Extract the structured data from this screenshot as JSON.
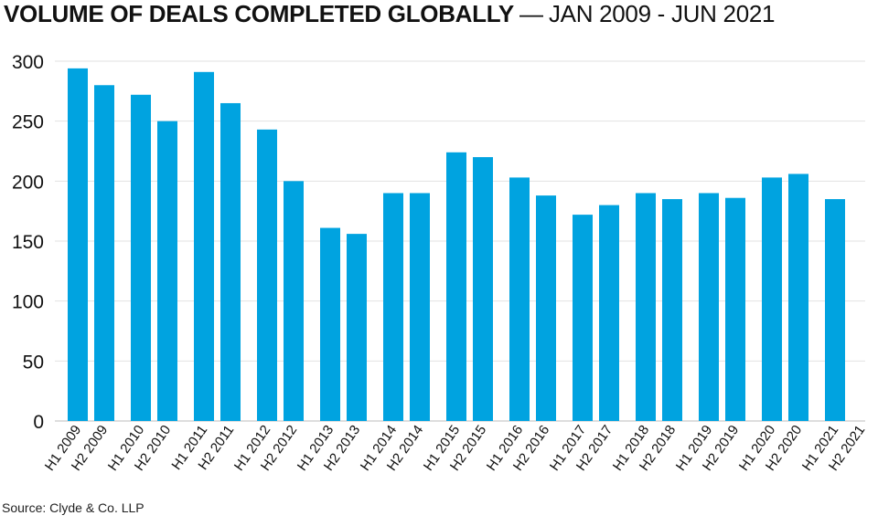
{
  "chart_data": {
    "type": "bar",
    "title": "VOLUME OF DEALS COMPLETED GLOBALLY",
    "subtitle": "JAN 2009 - JUN 2021",
    "separator": "—",
    "source": "Source: Clyde & Co. LLP",
    "categories": [
      "H1 2009",
      "H2 2009",
      "H1 2010",
      "H2 2010",
      "H1 2011",
      "H2 2011",
      "H1 2012",
      "H2 2012",
      "H1 2013",
      "H2 2013",
      "H1 2014",
      "H2 2014",
      "H1 2015",
      "H2 2015",
      "H1 2016",
      "H2 2016",
      "H1 2017",
      "H2 2017",
      "H1 2018",
      "H2 2018",
      "H1 2019",
      "H2 2019",
      "H1 2020",
      "H2 2020",
      "H1 2021",
      "H2 2021"
    ],
    "values": [
      294,
      280,
      272,
      250,
      291,
      265,
      243,
      200,
      161,
      156,
      190,
      190,
      224,
      220,
      203,
      188,
      172,
      180,
      190,
      185,
      190,
      186,
      203,
      206,
      185,
      null
    ],
    "yticks": [
      0,
      50,
      100,
      150,
      200,
      250,
      300
    ],
    "ylim": [
      0,
      300
    ],
    "grid": true,
    "bar_color": "#00a3e0"
  }
}
